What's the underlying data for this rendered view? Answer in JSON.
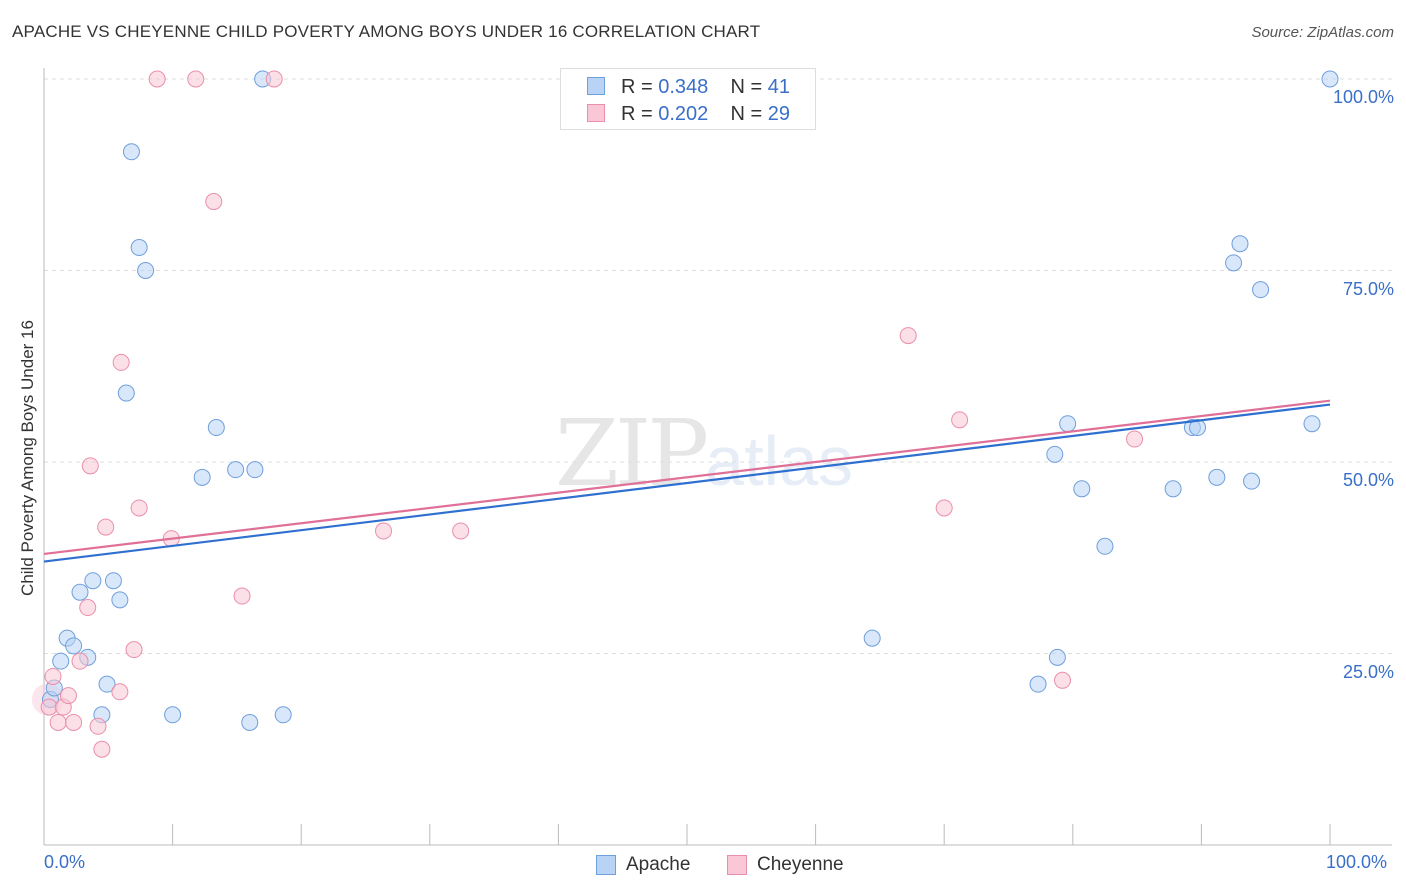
{
  "header": {
    "title": "APACHE VS CHEYENNE CHILD POVERTY AMONG BOYS UNDER 16 CORRELATION CHART",
    "source": "Source: ZipAtlas.com"
  },
  "watermark": {
    "zip": "ZIP",
    "atlas": "atlas"
  },
  "legend": {
    "apache": {
      "r_label": "R = ",
      "r": "0.348",
      "n_label": "N = ",
      "n": "41"
    },
    "cheyenne": {
      "r_label": "R = ",
      "r": "0.202",
      "n_label": "N = ",
      "n": "29"
    }
  },
  "colors": {
    "apache_fill": "#b8d3f4",
    "apache_stroke": "#6f9fdc",
    "apache_line": "#2f6fd0",
    "cheyenne_fill": "#f9c7d6",
    "cheyenne_stroke": "#ea8fab",
    "cheyenne_line": "#e07098",
    "grid": "#dddddd",
    "axis_text": "#3a6fc9"
  },
  "chart_data": {
    "type": "scatter",
    "title": "APACHE VS CHEYENNE CHILD POVERTY AMONG BOYS UNDER 16 CORRELATION CHART",
    "xlabel": "",
    "ylabel": "Child Poverty Among Boys Under 16",
    "xlim": [
      0,
      100
    ],
    "ylim": [
      0,
      100
    ],
    "x_tick_labels": [
      "0.0%",
      "100.0%"
    ],
    "y_tick_labels": [
      "25.0%",
      "50.0%",
      "75.0%",
      "100.0%"
    ],
    "y_ticks": [
      25,
      50,
      75,
      100
    ],
    "grid": true,
    "legend_position": "top-center",
    "series": [
      {
        "name": "Apache",
        "points": [
          [
            0.5,
            19
          ],
          [
            0.8,
            20.5
          ],
          [
            1.3,
            24
          ],
          [
            1.8,
            27
          ],
          [
            2.3,
            26
          ],
          [
            2.8,
            33
          ],
          [
            3.4,
            24.5
          ],
          [
            3.8,
            34.5
          ],
          [
            4.5,
            17
          ],
          [
            4.9,
            21
          ],
          [
            5.4,
            34.5
          ],
          [
            5.9,
            32
          ],
          [
            6.4,
            59
          ],
          [
            6.8,
            90.5
          ],
          [
            7.4,
            78
          ],
          [
            7.9,
            75
          ],
          [
            10,
            17
          ],
          [
            12.3,
            48
          ],
          [
            13.4,
            54.5
          ],
          [
            14.9,
            49
          ],
          [
            16,
            16
          ],
          [
            16.4,
            49
          ],
          [
            17,
            100
          ],
          [
            18.6,
            17
          ],
          [
            64.4,
            27
          ],
          [
            77.3,
            21
          ],
          [
            78.6,
            51
          ],
          [
            78.8,
            24.5
          ],
          [
            79.6,
            55
          ],
          [
            80.7,
            46.5
          ],
          [
            82.5,
            39
          ],
          [
            87.8,
            46.5
          ],
          [
            89.3,
            54.5
          ],
          [
            89.7,
            54.5
          ],
          [
            91.2,
            48
          ],
          [
            92.5,
            76
          ],
          [
            93,
            78.5
          ],
          [
            93.9,
            47.5
          ],
          [
            94.6,
            72.5
          ],
          [
            98.6,
            55
          ],
          [
            100,
            100
          ]
        ],
        "trend": {
          "x": [
            0,
            100
          ],
          "y": [
            37,
            57.5
          ]
        }
      },
      {
        "name": "Cheyenne",
        "points": [
          [
            0.4,
            18
          ],
          [
            0.7,
            22
          ],
          [
            1.1,
            16
          ],
          [
            1.5,
            18
          ],
          [
            1.9,
            19.5
          ],
          [
            2.3,
            16
          ],
          [
            2.8,
            24
          ],
          [
            3.4,
            31
          ],
          [
            3.6,
            49.5
          ],
          [
            4.2,
            15.5
          ],
          [
            4.5,
            12.5
          ],
          [
            4.8,
            41.5
          ],
          [
            5.9,
            20
          ],
          [
            6,
            63
          ],
          [
            7,
            25.5
          ],
          [
            7.4,
            44
          ],
          [
            9.9,
            40
          ],
          [
            8.8,
            100
          ],
          [
            11.8,
            100
          ],
          [
            13.2,
            84
          ],
          [
            15.4,
            32.5
          ],
          [
            17.9,
            100
          ],
          [
            26.4,
            41
          ],
          [
            32.4,
            41
          ],
          [
            67.2,
            66.5
          ],
          [
            70,
            44
          ],
          [
            71.2,
            55.5
          ],
          [
            79.2,
            21.5
          ],
          [
            84.8,
            53
          ]
        ],
        "trend": {
          "x": [
            0,
            100
          ],
          "y": [
            38,
            58
          ]
        }
      }
    ]
  }
}
